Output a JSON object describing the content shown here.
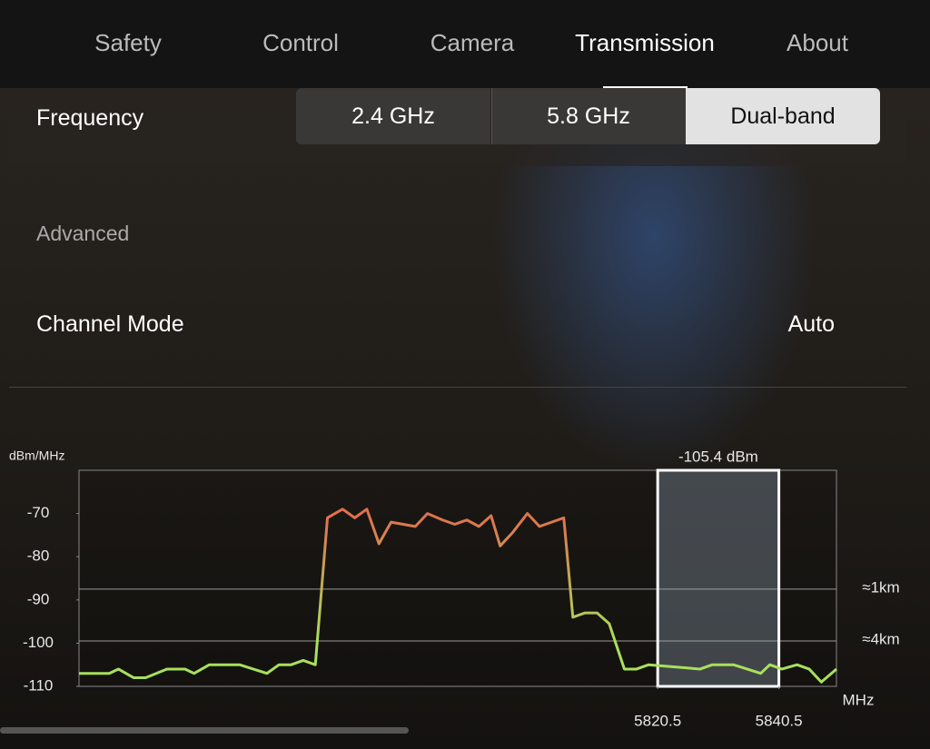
{
  "tabs": [
    "Safety",
    "Control",
    "Camera",
    "Transmission",
    "About"
  ],
  "active_tab": 3,
  "frequency": {
    "label": "Frequency",
    "options": [
      "2.4 GHz",
      "5.8 GHz",
      "Dual-band"
    ],
    "selected": 2
  },
  "advanced": "Advanced",
  "channel_mode": {
    "label": "Channel Mode",
    "value": "Auto"
  },
  "chart_data": {
    "type": "line",
    "y_label": "dBm/MHz",
    "x_label": "MHz",
    "xlim": [
      5725,
      5850
    ],
    "ylim": [
      -110,
      -60
    ],
    "xticks": [
      5820.5,
      5840.5
    ],
    "yticks": [
      -70,
      -80,
      -90,
      -100,
      -110
    ],
    "colors": [
      "#a8e05c",
      "#e0704c"
    ],
    "x": [
      5725,
      5730,
      5731.5,
      5734,
      5736,
      5739.5,
      5742.5,
      5744,
      5746.5,
      5751.5,
      5756,
      5758,
      5760,
      5762,
      5764,
      5766,
      5768.5,
      5770.5,
      5772.5,
      5774.5,
      5776.5,
      5780.5,
      5782.5,
      5785,
      5787,
      5789,
      5791,
      5793,
      5794.5,
      5796.5,
      5799,
      5801,
      5805,
      5806.5,
      5808.5,
      5810.5,
      5812.5,
      5815,
      5817,
      5819,
      5827.5,
      5829.5,
      5833,
      5837.5,
      5839,
      5841,
      5843.5,
      5845.5,
      5847.5,
      5850
    ],
    "values": [
      -107,
      -107,
      -106,
      -108,
      -108,
      -106,
      -106,
      -107,
      -105,
      -105,
      -107,
      -105,
      -105,
      -104,
      -105,
      -71,
      -69,
      -71,
      -69,
      -77,
      -72,
      -73,
      -70,
      -71.5,
      -72.5,
      -71.5,
      -73,
      -70.5,
      -77.5,
      -74.5,
      -70,
      -73,
      -71,
      -94,
      -93,
      -93,
      -95.5,
      -106,
      -106,
      -105,
      -106,
      -105,
      -105,
      -107,
      -105,
      -106,
      -105,
      -106,
      -109,
      -106
    ],
    "highlight": {
      "start": 5820.5,
      "end": 5840.5,
      "label": "-105.4 dBm"
    },
    "ref_lines": [
      {
        "value": -87.5,
        "label": "≈1km"
      },
      {
        "value": -99.5,
        "label": "≈4km"
      }
    ]
  }
}
